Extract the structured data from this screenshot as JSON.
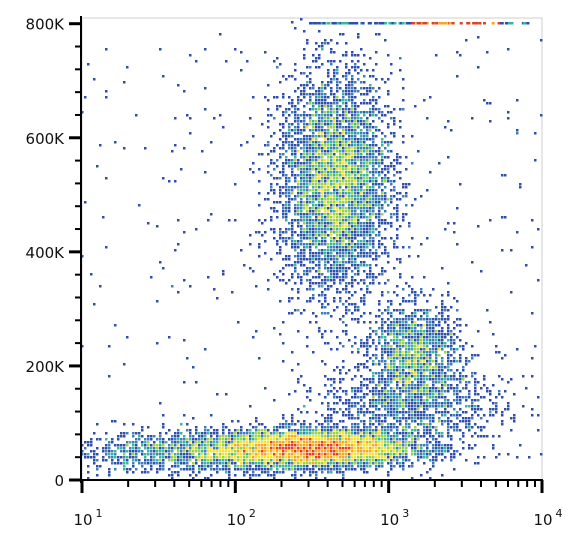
{
  "chart_data": {
    "type": "scatter",
    "style": "flow-cytometry density dot plot",
    "x_scale": "log",
    "xlim": [
      10,
      10000
    ],
    "ylim": [
      0,
      810000
    ],
    "x_ticks": [
      {
        "value": 10,
        "base": "10",
        "exp": "1"
      },
      {
        "value": 100,
        "base": "10",
        "exp": "2"
      },
      {
        "value": 1000,
        "base": "10",
        "exp": "3"
      },
      {
        "value": 10000,
        "base": "10",
        "exp": "4"
      }
    ],
    "y_ticks": [
      {
        "value": 0,
        "label": "0"
      },
      {
        "value": 200000,
        "label": "200K"
      },
      {
        "value": 400000,
        "label": "400K"
      },
      {
        "value": 600000,
        "label": "600K"
      },
      {
        "value": 800000,
        "label": "800K"
      }
    ],
    "populations": [
      {
        "name": "",
        "x_center": 320,
        "x_spread_log10": 0.33,
        "y_center": 55000,
        "y_spread": 16000,
        "share": 0.38
      },
      {
        "name": "",
        "x_center": 60,
        "x_spread_log10": 0.45,
        "y_center": 48000,
        "y_spread": 18000,
        "share": 0.1
      },
      {
        "name": "",
        "x_center": 450,
        "x_spread_log10": 0.18,
        "y_center": 520000,
        "y_spread": 95000,
        "share": 0.34
      },
      {
        "name": "",
        "x_center": 1450,
        "x_spread_log10": 0.15,
        "y_center": 220000,
        "y_spread": 45000,
        "share": 0.1
      },
      {
        "name": "",
        "x_center": 1400,
        "x_spread_log10": 0.3,
        "y_center": 130000,
        "y_spread": 40000,
        "share": 0.08
      }
    ],
    "saturation_band": {
      "y": 803000,
      "x_from": 300,
      "x_to": 8000
    },
    "color_scale": [
      "#2f4ea8",
      "#3f7fb8",
      "#3ab6a0",
      "#9ad24a",
      "#f3e23a",
      "#f6a72a",
      "#e0402a"
    ],
    "grid": false,
    "legend": "none",
    "title": "",
    "xlabel": "",
    "ylabel": ""
  }
}
